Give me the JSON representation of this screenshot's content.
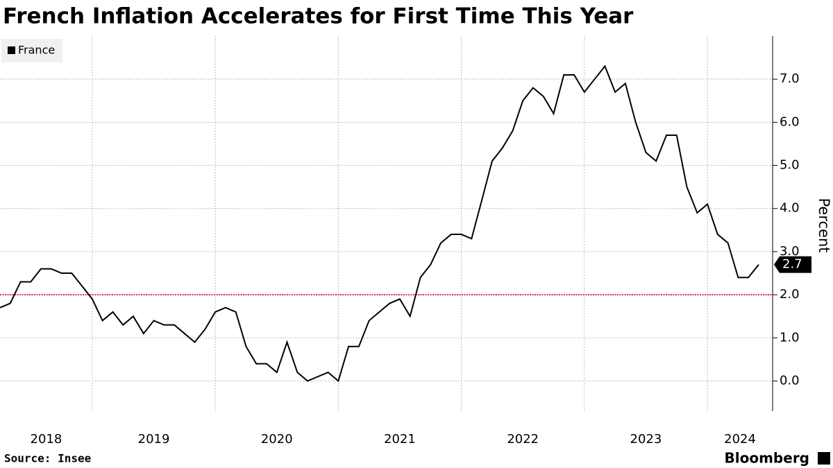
{
  "chart_data": {
    "type": "line",
    "title": "French Inflation Accelerates for First Time This Year",
    "source": "Source: Insee",
    "brand": "Bloomberg",
    "y_label": "Percent",
    "x": [
      2018.25,
      2018.333,
      2018.417,
      2018.5,
      2018.583,
      2018.667,
      2018.75,
      2018.833,
      2018.917,
      2019.0,
      2019.083,
      2019.167,
      2019.25,
      2019.333,
      2019.417,
      2019.5,
      2019.583,
      2019.667,
      2019.75,
      2019.833,
      2019.917,
      2020.0,
      2020.083,
      2020.167,
      2020.25,
      2020.333,
      2020.417,
      2020.5,
      2020.583,
      2020.667,
      2020.75,
      2020.833,
      2020.917,
      2021.0,
      2021.083,
      2021.167,
      2021.25,
      2021.333,
      2021.417,
      2021.5,
      2021.583,
      2021.667,
      2021.75,
      2021.833,
      2021.917,
      2022.0,
      2022.083,
      2022.167,
      2022.25,
      2022.333,
      2022.417,
      2022.5,
      2022.583,
      2022.667,
      2022.75,
      2022.833,
      2022.917,
      2023.0,
      2023.083,
      2023.167,
      2023.25,
      2023.333,
      2023.417,
      2023.5,
      2023.583,
      2023.667,
      2023.75,
      2023.833,
      2023.917,
      2024.0,
      2024.083,
      2024.167,
      2024.25,
      2024.333,
      2024.417
    ],
    "series": [
      {
        "name": "France",
        "color": "#000000",
        "values": [
          1.7,
          1.8,
          2.3,
          2.3,
          2.6,
          2.6,
          2.5,
          2.5,
          2.2,
          1.9,
          1.4,
          1.6,
          1.3,
          1.5,
          1.1,
          1.4,
          1.3,
          1.3,
          1.1,
          0.9,
          1.2,
          1.6,
          1.7,
          1.6,
          0.8,
          0.4,
          0.4,
          0.2,
          0.9,
          0.2,
          0.0,
          0.1,
          0.2,
          0.0,
          0.8,
          0.8,
          1.4,
          1.6,
          1.8,
          1.9,
          1.5,
          2.4,
          2.7,
          3.2,
          3.4,
          3.4,
          3.3,
          4.2,
          5.1,
          5.4,
          5.8,
          6.5,
          6.8,
          6.6,
          6.2,
          7.1,
          7.1,
          6.7,
          7.0,
          7.3,
          6.7,
          6.9,
          6.0,
          5.3,
          5.1,
          5.7,
          5.7,
          4.5,
          3.9,
          4.1,
          3.4,
          3.2,
          2.4,
          2.4,
          2.7
        ]
      }
    ],
    "xlim": [
      2018.25,
      2024.53
    ],
    "xticks": [
      {
        "value": 2018,
        "label": "2018"
      },
      {
        "value": 2019,
        "label": "2019"
      },
      {
        "value": 2020,
        "label": "2020"
      },
      {
        "value": 2021,
        "label": "2021"
      },
      {
        "value": 2022,
        "label": "2022"
      },
      {
        "value": 2023,
        "label": "2023"
      },
      {
        "value": 2024,
        "label": "2024"
      }
    ],
    "ylim": [
      -0.7,
      8.0
    ],
    "yticks": [
      {
        "value": 0,
        "label": "0.0"
      },
      {
        "value": 1,
        "label": "1.0"
      },
      {
        "value": 2,
        "label": "2.0"
      },
      {
        "value": 3,
        "label": "3.0"
      },
      {
        "value": 4,
        "label": "4.0"
      },
      {
        "value": 5,
        "label": "5.0"
      },
      {
        "value": 6,
        "label": "6.0"
      },
      {
        "value": 7,
        "label": "7.0"
      }
    ],
    "reference_line": {
      "value": 2,
      "color": "#e0218a"
    },
    "grid": true,
    "legend": "top-left"
  }
}
